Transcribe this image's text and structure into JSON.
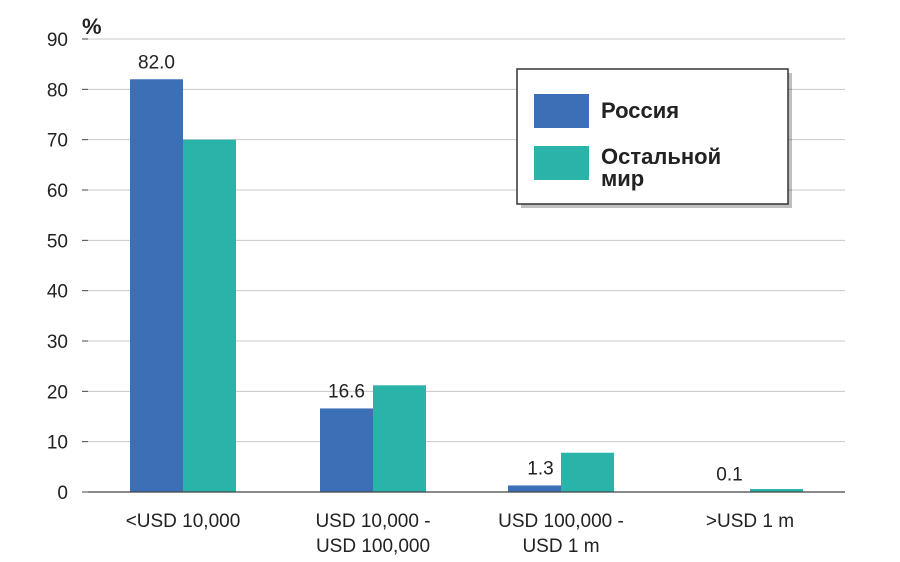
{
  "chart_data": {
    "type": "bar",
    "y_unit": "%",
    "ylim": [
      0,
      90
    ],
    "yticks": [
      0,
      10,
      20,
      30,
      40,
      50,
      60,
      70,
      80,
      90
    ],
    "grid": true,
    "legend_position": "top-right",
    "categories": [
      [
        "<USD 10,000"
      ],
      [
        "USD 10,000 -",
        "USD 100,000"
      ],
      [
        "USD 100,000 -",
        "USD 1 m"
      ],
      [
        ">USD 1 m"
      ]
    ],
    "series": [
      {
        "name": "Россия",
        "legend_lines": [
          "Россия"
        ],
        "color": "#3b6fb6",
        "values": [
          82.0,
          16.6,
          1.3,
          0.1
        ],
        "data_labels": [
          "82.0",
          "16.6",
          "1.3",
          "0.1"
        ]
      },
      {
        "name": "Остальной мир",
        "legend_lines": [
          "Остальной",
          "мир"
        ],
        "color": "#2ab3a8",
        "values": [
          70,
          21.2,
          7.8,
          0.6
        ]
      }
    ]
  }
}
